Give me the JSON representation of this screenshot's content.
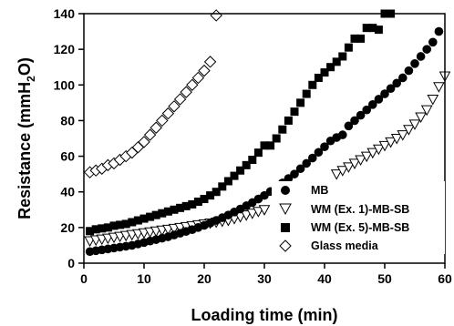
{
  "chart_data": {
    "type": "scatter",
    "xlabel": "Loading time (min)",
    "ylabel_main": "Resistance (mmH",
    "ylabel_sub": "2",
    "ylabel_end": "O)",
    "xlim": [
      0,
      60
    ],
    "ylim": [
      0,
      140
    ],
    "xticks": [
      0,
      10,
      20,
      30,
      40,
      50,
      60
    ],
    "yticks": [
      0,
      20,
      40,
      60,
      80,
      100,
      120,
      140
    ],
    "grid": false,
    "legend_position": "bottom-right",
    "series": [
      {
        "name": "MB",
        "marker": "filled-circle",
        "x": [
          1,
          2,
          3,
          4,
          5,
          6,
          7,
          8,
          9,
          10,
          11,
          12,
          13,
          14,
          15,
          16,
          17,
          18,
          19,
          20,
          21,
          22,
          23,
          24,
          25,
          26,
          27,
          28,
          29,
          30,
          31,
          32,
          33,
          34,
          35,
          36,
          37,
          38,
          39,
          40,
          41,
          42,
          43,
          44,
          45,
          46,
          47,
          48,
          49,
          50,
          51,
          52,
          53,
          54,
          55,
          56,
          57,
          58,
          59
        ],
        "y": [
          6.5,
          7,
          7.5,
          8,
          8.5,
          9,
          9.5,
          10,
          10.8,
          11.6,
          12.4,
          13.2,
          14,
          14.8,
          15.8,
          16.8,
          17.8,
          18.8,
          20,
          21.2,
          22.5,
          24,
          25.5,
          27,
          28.7,
          30.4,
          32.2,
          34,
          36,
          38,
          40.2,
          42.5,
          45,
          47.5,
          50,
          53,
          56,
          59,
          62.2,
          65.3,
          68.6,
          70.5,
          72,
          77,
          80,
          83,
          86,
          89,
          92,
          95,
          98,
          101,
          104,
          108,
          112,
          116,
          120,
          124,
          130
        ]
      },
      {
        "name": "WM (Ex. 1)-MB-SB",
        "marker": "open-triangle-down",
        "x": [
          1,
          2,
          3,
          4,
          5,
          6,
          7,
          8,
          9,
          10,
          11,
          12,
          13,
          14,
          15,
          16,
          17,
          18,
          19,
          20,
          21,
          22,
          23,
          24,
          25,
          26,
          27,
          28,
          29,
          30,
          42,
          43,
          44,
          45,
          46,
          47,
          48,
          49,
          50,
          51,
          52,
          53,
          54,
          55,
          56,
          57,
          58,
          59,
          60
        ],
        "y": [
          12.5,
          13,
          13.5,
          14,
          14.5,
          15,
          15.5,
          16,
          16.5,
          17,
          17.5,
          18,
          18.5,
          19,
          19.5,
          20,
          20.5,
          21,
          21.5,
          22,
          22.5,
          23,
          23.5,
          24,
          25,
          26,
          27,
          28,
          29,
          30,
          50,
          52,
          54,
          56,
          58,
          60,
          62,
          64,
          66,
          68,
          70,
          72,
          75,
          78,
          82,
          86,
          92,
          99,
          105
        ]
      },
      {
        "name": "WM (Ex. 5)-MB-SB",
        "marker": "filled-square",
        "x": [
          1,
          2,
          3,
          4,
          5,
          6,
          7,
          8,
          9,
          10,
          11,
          12,
          13,
          14,
          15,
          16,
          17,
          18,
          19,
          20,
          21,
          22,
          23,
          24,
          25,
          26,
          27,
          28,
          29,
          30,
          31,
          32,
          33,
          34,
          35,
          36,
          37,
          38,
          39,
          40,
          41,
          42,
          43,
          44,
          45,
          46,
          47,
          48,
          49,
          50,
          51
        ],
        "y": [
          18,
          19,
          19.5,
          20,
          21,
          21.5,
          22,
          23,
          24,
          25,
          26,
          27,
          28,
          29,
          30,
          31,
          32,
          33,
          34.5,
          36,
          38,
          40,
          43,
          46,
          49,
          52,
          55,
          58,
          62,
          66,
          66,
          70,
          75,
          80,
          85,
          90,
          95,
          100,
          104,
          107,
          110,
          113,
          116,
          121,
          126,
          126,
          132,
          132,
          131,
          140,
          140
        ]
      },
      {
        "name": "Glass media",
        "marker": "open-diamond",
        "x": [
          1,
          2,
          3,
          4,
          5,
          6,
          7,
          8,
          9,
          10,
          11,
          12,
          13,
          14,
          15,
          16,
          17,
          18,
          19,
          20,
          21,
          22
        ],
        "y": [
          51,
          52,
          53,
          55,
          56,
          58,
          60,
          62,
          65,
          68,
          72,
          76,
          80,
          84,
          88,
          92,
          96,
          100,
          104,
          108,
          113,
          139
        ]
      }
    ]
  }
}
